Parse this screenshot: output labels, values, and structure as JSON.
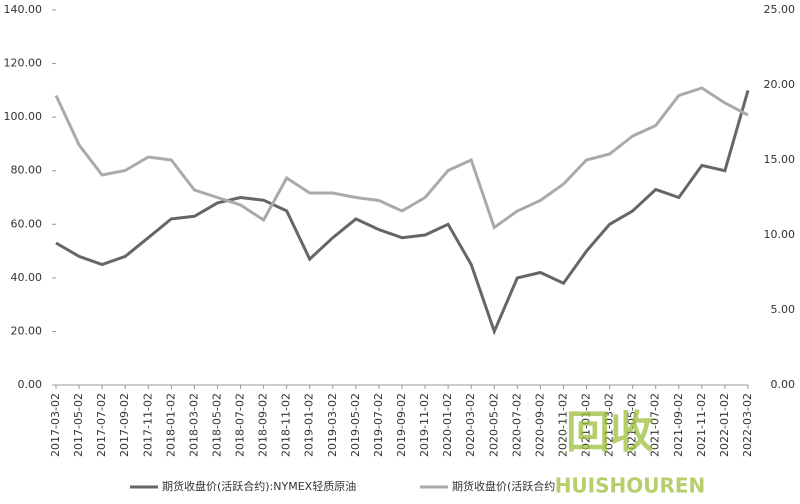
{
  "chart_data": {
    "type": "line",
    "x": [
      "2017-03-02",
      "2017-05-02",
      "2017-07-02",
      "2017-09-02",
      "2017-11-02",
      "2018-01-02",
      "2018-03-02",
      "2018-05-02",
      "2018-07-02",
      "2018-09-02",
      "2018-11-02",
      "2019-01-02",
      "2019-03-02",
      "2019-05-02",
      "2019-07-02",
      "2019-09-02",
      "2019-11-02",
      "2020-01-02",
      "2020-03-02",
      "2020-05-02",
      "2020-07-02",
      "2020-09-02",
      "2020-11-02",
      "2021-01-02",
      "2021-03-02",
      "2021-05-02",
      "2021-07-02",
      "2021-09-02",
      "2021-11-02",
      "2022-01-02",
      "2022-03-02"
    ],
    "series": [
      {
        "name": "期货收盘价(活跃合约):NYMEX轻质原油",
        "color": "#666666",
        "axis": "y",
        "values": [
          53,
          48,
          45,
          48,
          55,
          62,
          63,
          68,
          70,
          69,
          65,
          47,
          55,
          62,
          58,
          55,
          56,
          60,
          45,
          20,
          40,
          42,
          38,
          50,
          60,
          65,
          73,
          70,
          82,
          80,
          110
        ]
      },
      {
        "name": "期货收盘价(活跃合约",
        "color": "#aaaaaa",
        "axis": "y2",
        "values": [
          19.3,
          16.0,
          14.0,
          14.3,
          15.2,
          15.0,
          13.0,
          12.5,
          12.0,
          11.0,
          13.8,
          12.8,
          12.8,
          12.5,
          12.3,
          11.6,
          12.5,
          14.3,
          15.0,
          10.5,
          11.6,
          12.3,
          13.4,
          15.0,
          15.4,
          16.6,
          17.3,
          19.3,
          19.8,
          18.8,
          18.0
        ]
      }
    ],
    "ylim": [
      0,
      140
    ],
    "yticks": [
      {
        "value": 0,
        "label": "0.00"
      },
      {
        "value": 20,
        "label": "20.00"
      },
      {
        "value": 40,
        "label": "40.00"
      },
      {
        "value": 60,
        "label": "60.00"
      },
      {
        "value": 80,
        "label": "80.00"
      },
      {
        "value": 100,
        "label": "100.00"
      },
      {
        "value": 120,
        "label": "120.00"
      },
      {
        "value": 140,
        "label": "140.00"
      }
    ],
    "y2lim": [
      0,
      25
    ],
    "y2ticks": [
      {
        "value": 0,
        "label": "0.00"
      },
      {
        "value": 5,
        "label": "5.00"
      },
      {
        "value": 10,
        "label": "10.00"
      },
      {
        "value": 15,
        "label": "15.00"
      },
      {
        "value": 20,
        "label": "20.00"
      },
      {
        "value": 25,
        "label": "25.00"
      }
    ],
    "legend": "bottom",
    "watermark": [
      "回收",
      "HUISHOUREN"
    ]
  }
}
